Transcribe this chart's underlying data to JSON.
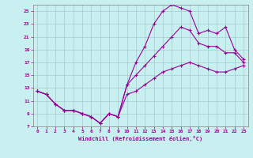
{
  "xlabel": "Windchill (Refroidissement éolien,°C)",
  "bg_color": "#c8f0f0",
  "grid_color": "#a8c8d0",
  "line_color": "#990099",
  "spine_color": "#808080",
  "xlim": [
    -0.5,
    23.5
  ],
  "ylim": [
    7,
    26
  ],
  "yticks": [
    7,
    9,
    11,
    13,
    15,
    17,
    19,
    21,
    23,
    25
  ],
  "xticks": [
    0,
    1,
    2,
    3,
    4,
    5,
    6,
    7,
    8,
    9,
    10,
    11,
    12,
    13,
    14,
    15,
    16,
    17,
    18,
    19,
    20,
    21,
    22,
    23
  ],
  "line1_x": [
    0,
    1,
    2,
    3,
    4,
    5,
    6,
    7,
    8,
    9,
    10,
    11,
    12,
    13,
    14,
    15,
    16,
    17,
    18,
    19,
    20,
    21,
    22,
    23
  ],
  "line1_y": [
    12.5,
    12.0,
    10.5,
    9.5,
    9.5,
    9.0,
    8.5,
    7.5,
    9.0,
    8.5,
    13.5,
    17.0,
    19.5,
    23.0,
    25.0,
    26.0,
    25.5,
    25.0,
    21.5,
    22.0,
    21.5,
    22.5,
    19.0,
    17.5
  ],
  "line2_x": [
    0,
    1,
    2,
    3,
    4,
    5,
    6,
    7,
    8,
    9,
    10,
    11,
    12,
    13,
    14,
    15,
    16,
    17,
    18,
    19,
    20,
    21,
    22,
    23
  ],
  "line2_y": [
    12.5,
    12.0,
    10.5,
    9.5,
    9.5,
    9.0,
    8.5,
    7.5,
    9.0,
    8.5,
    13.5,
    15.0,
    16.5,
    18.0,
    19.5,
    21.0,
    22.5,
    22.0,
    20.0,
    19.5,
    19.5,
    18.5,
    18.5,
    17.0
  ],
  "line3_x": [
    0,
    1,
    2,
    3,
    4,
    5,
    6,
    7,
    8,
    9,
    10,
    11,
    12,
    13,
    14,
    15,
    16,
    17,
    18,
    19,
    20,
    21,
    22,
    23
  ],
  "line3_y": [
    12.5,
    12.0,
    10.5,
    9.5,
    9.5,
    9.0,
    8.5,
    7.5,
    9.0,
    8.5,
    12.0,
    12.5,
    13.5,
    14.5,
    15.5,
    16.0,
    16.5,
    17.0,
    16.5,
    16.0,
    15.5,
    15.5,
    16.0,
    16.5
  ]
}
